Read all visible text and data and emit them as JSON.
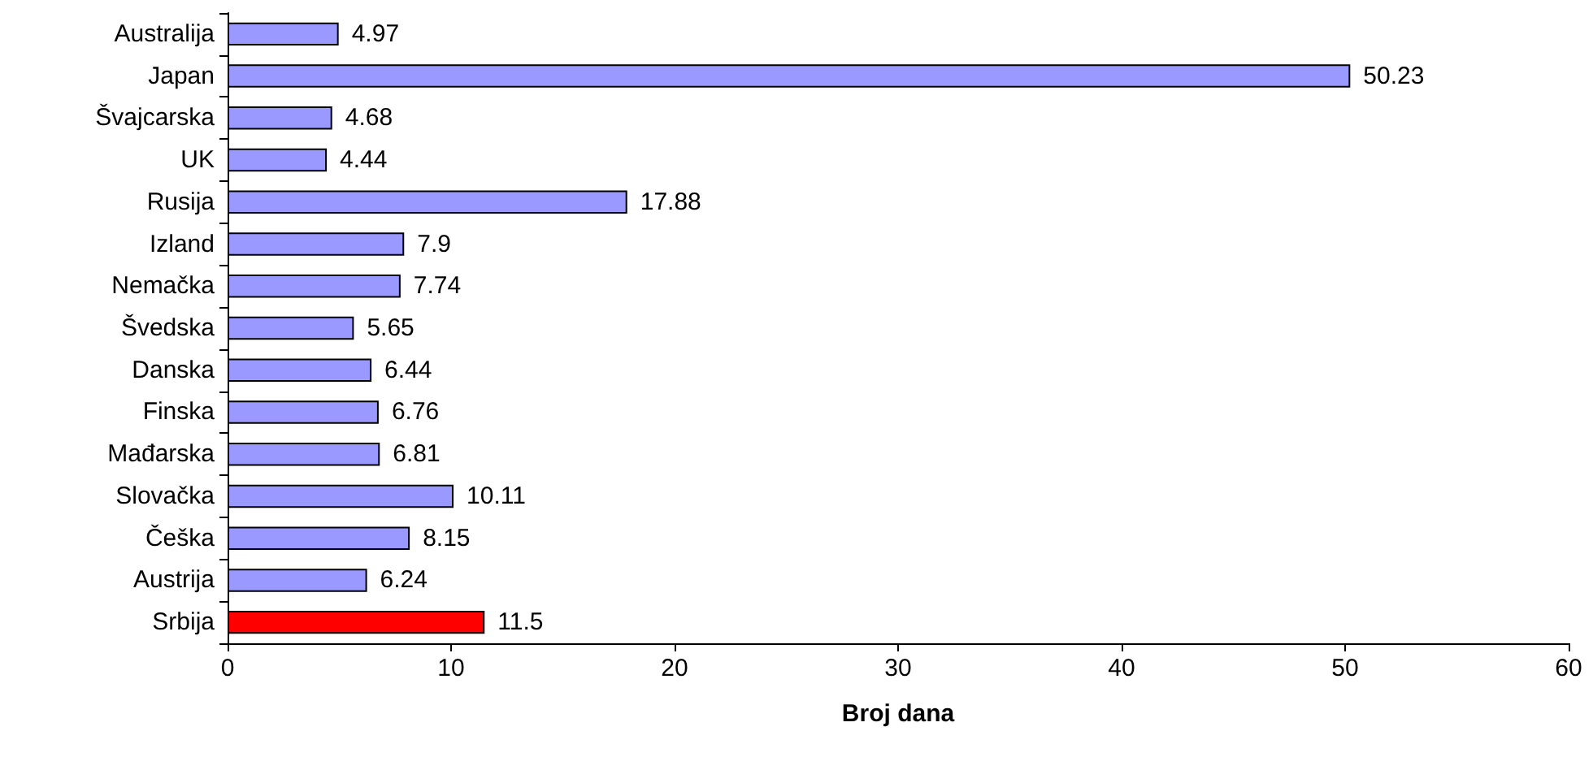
{
  "chart_data": {
    "type": "bar",
    "orientation": "horizontal",
    "xlabel": "Broj dana",
    "categories": [
      "Australija",
      "Japan",
      "Švajcarska",
      "UK",
      "Rusija",
      "Izland",
      "Nemačka",
      "Švedska",
      "Danska",
      "Finska",
      "Mađarska",
      "Slovačka",
      "Češka",
      "Austrija",
      "Srbija"
    ],
    "values": [
      4.97,
      50.23,
      4.68,
      4.44,
      17.88,
      7.9,
      7.74,
      5.65,
      6.44,
      6.76,
      6.81,
      10.11,
      8.15,
      6.24,
      11.5
    ],
    "colors": [
      "#9999ff",
      "#9999ff",
      "#9999ff",
      "#9999ff",
      "#9999ff",
      "#9999ff",
      "#9999ff",
      "#9999ff",
      "#9999ff",
      "#9999ff",
      "#9999ff",
      "#9999ff",
      "#9999ff",
      "#9999ff",
      "#ff0000"
    ],
    "xlim": [
      0,
      60
    ],
    "xticks": [
      0,
      10,
      20,
      30,
      40,
      50,
      60
    ],
    "data_labels": true
  }
}
